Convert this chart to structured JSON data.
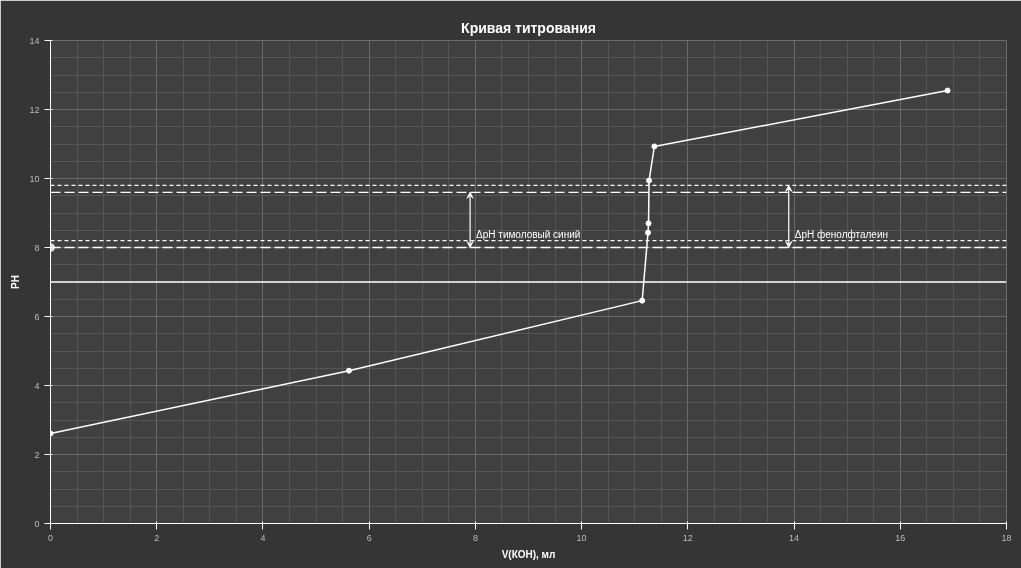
{
  "chart_data": {
    "type": "line",
    "title": "Кривая титрования",
    "xlabel": "V(КОН), мл",
    "ylabel": "PH",
    "xlim": [
      0,
      18
    ],
    "xticks": [
      0,
      2,
      4,
      6,
      8,
      10,
      12,
      14,
      16,
      18
    ],
    "ylim": [
      0,
      14
    ],
    "yticks": [
      0,
      2,
      4,
      6,
      8,
      10,
      12,
      14
    ],
    "grid": true,
    "marker": "circle",
    "line_style": "solid",
    "series": [
      {
        "color": "#ffffff",
        "x": [
          0,
          5.62,
          11.14,
          11.25,
          11.26,
          11.27,
          11.37,
          16.89
        ],
        "values": [
          2.61,
          4.43,
          6.46,
          8.43,
          8.7,
          9.94,
          10.93,
          12.55
        ]
      },
      {
        "type": "scatter",
        "color": "#d9d9d9",
        "x": [
          0
        ],
        "values": [
          8.0
        ]
      }
    ],
    "ref_lines": [
      {
        "axis": "y",
        "value": 7.0,
        "line_style": "solid",
        "color": "#ffffff"
      },
      {
        "axis": "y",
        "value": 8.0,
        "line_style": "dashed",
        "color": "#ffffff"
      },
      {
        "axis": "y",
        "value": 8.2,
        "line_style": "dotted",
        "color": "#ffffff"
      },
      {
        "axis": "y",
        "value": 9.6,
        "line_style": "dashed",
        "color": "#ffffff"
      },
      {
        "axis": "y",
        "value": 9.8,
        "line_style": "dotted",
        "color": "#ffffff"
      }
    ],
    "annotations": [
      {
        "text": "ΔpH тимоловый синий",
        "x": 7.9,
        "y": 9.6
      },
      {
        "text": "ΔpH фенолфталеин",
        "x": 13.9,
        "y": 9.8
      }
    ]
  }
}
